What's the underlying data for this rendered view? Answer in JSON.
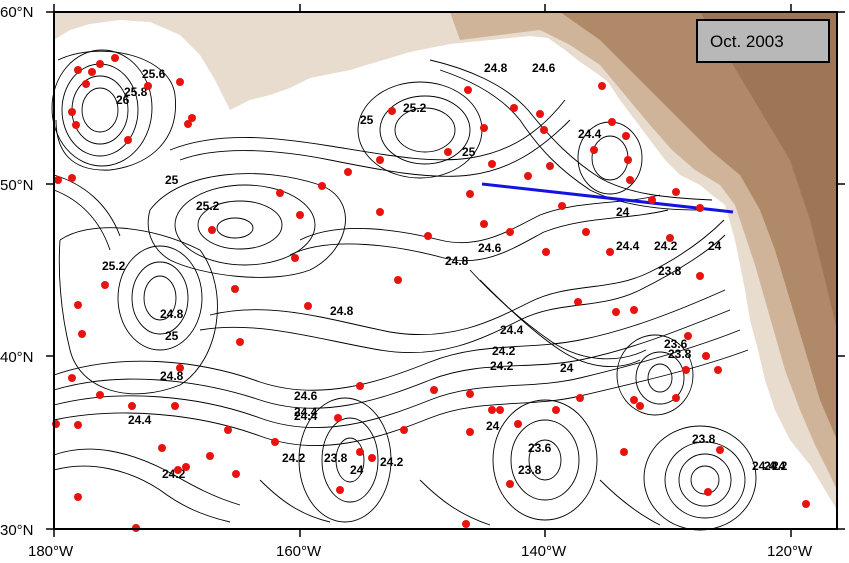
{
  "map": {
    "date_label": "Oct. 2003",
    "lon_labels": [
      "180°W",
      "160°W",
      "140°W",
      "120°W"
    ],
    "lat_labels": [
      "60°N",
      "50°N",
      "40°N",
      "30°N"
    ],
    "contour_labels": [
      "25.6",
      "25.8",
      "26",
      "24.8",
      "24.6",
      "25.2",
      "25",
      "24.4",
      "25",
      "25.2",
      "25",
      "25.2",
      "24.8",
      "25",
      "24.8",
      "24.6",
      "24.4",
      "24.2",
      "24",
      "24.8",
      "23.8",
      "24.4",
      "24.2",
      "24",
      "24.6",
      "24.4",
      "24.2",
      "23.6",
      "23.8",
      "24.4",
      "24.8",
      "24.4",
      "24.2",
      "24",
      "24.2",
      "23.8",
      "24",
      "24.2",
      "23.8",
      "23.6",
      "24",
      "23.8",
      "24.4",
      "24.2",
      "24"
    ],
    "colors": {
      "ocean": "#ffffff",
      "land_light": "#e8dccf",
      "land_mid": "#cfb49a",
      "land_dark": "#b08a68",
      "contour": "#000000",
      "float": "#e8120f",
      "section_line": "#1414e0",
      "label_box": "#b8b8b8"
    }
  }
}
